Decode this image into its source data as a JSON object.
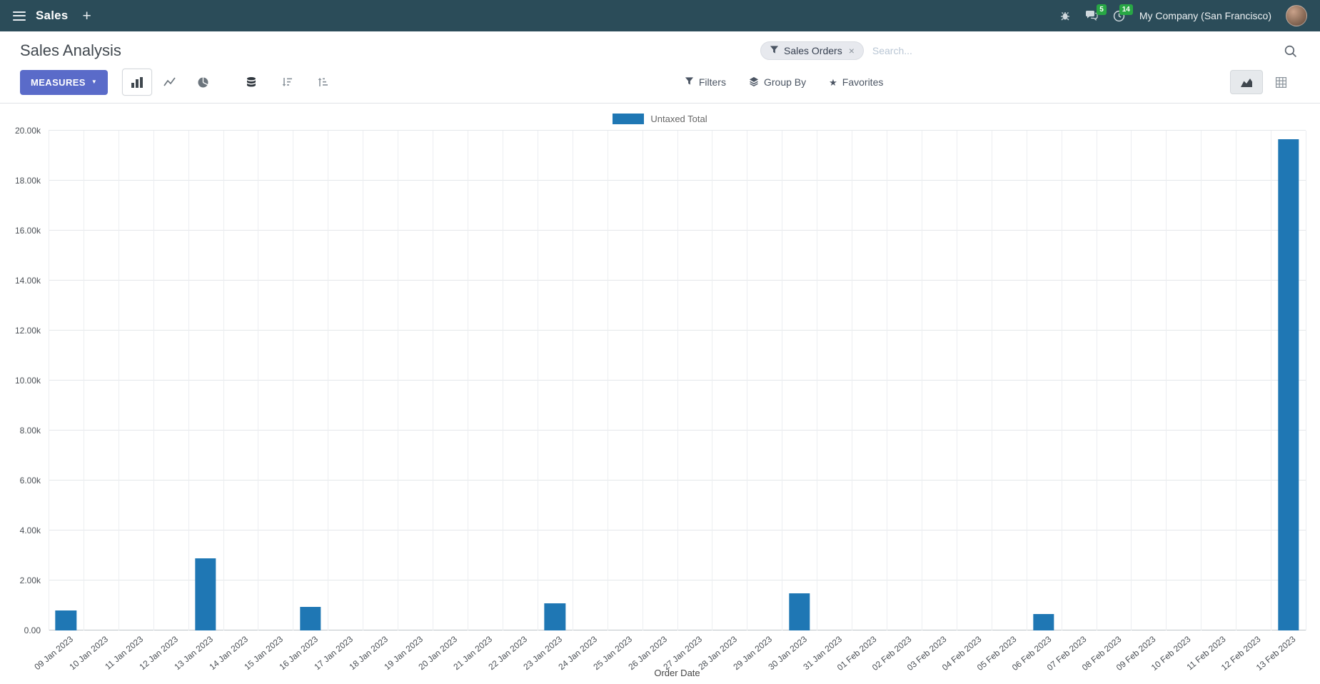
{
  "navbar": {
    "app_menu_label": "Sales",
    "messages_badge": "5",
    "activities_badge": "14",
    "company": "My Company (San Francisco)"
  },
  "icons": {
    "caret_down": "▼",
    "favorites_star": "★",
    "facet_remove": "×",
    "plus": "+"
  },
  "control_panel": {
    "title": "Sales Analysis",
    "measures_button": "MEASURES",
    "search": {
      "facet_label": "Sales Orders",
      "placeholder": "Search..."
    },
    "filters_label": "Filters",
    "group_by_label": "Group By",
    "favorites_label": "Favorites"
  },
  "chart_data": {
    "type": "bar",
    "title": "",
    "legend": [
      "Untaxed Total"
    ],
    "xlabel": "Order Date",
    "ylabel": "",
    "ylim": [
      0,
      20000
    ],
    "grid": true,
    "legend_position": "top-center",
    "bar_color": "#1f77b4",
    "ytick_labels": [
      "0.00",
      "2.00k",
      "4.00k",
      "6.00k",
      "8.00k",
      "10.00k",
      "12.00k",
      "14.00k",
      "16.00k",
      "18.00k",
      "20.00k"
    ],
    "categories": [
      "09 Jan 2023",
      "10 Jan 2023",
      "11 Jan 2023",
      "12 Jan 2023",
      "13 Jan 2023",
      "14 Jan 2023",
      "15 Jan 2023",
      "16 Jan 2023",
      "17 Jan 2023",
      "18 Jan 2023",
      "19 Jan 2023",
      "20 Jan 2023",
      "21 Jan 2023",
      "22 Jan 2023",
      "23 Jan 2023",
      "24 Jan 2023",
      "25 Jan 2023",
      "26 Jan 2023",
      "27 Jan 2023",
      "28 Jan 2023",
      "29 Jan 2023",
      "30 Jan 2023",
      "31 Jan 2023",
      "01 Feb 2023",
      "02 Feb 2023",
      "03 Feb 2023",
      "04 Feb 2023",
      "05 Feb 2023",
      "06 Feb 2023",
      "07 Feb 2023",
      "08 Feb 2023",
      "09 Feb 2023",
      "10 Feb 2023",
      "11 Feb 2023",
      "12 Feb 2023",
      "13 Feb 2023"
    ],
    "series": [
      {
        "name": "Untaxed Total",
        "values": [
          800,
          0,
          0,
          0,
          2900,
          0,
          0,
          950,
          0,
          0,
          0,
          0,
          0,
          0,
          1100,
          0,
          0,
          0,
          0,
          0,
          0,
          1500,
          0,
          0,
          0,
          0,
          0,
          0,
          650,
          0,
          0,
          0,
          0,
          0,
          0,
          19650
        ]
      }
    ]
  }
}
